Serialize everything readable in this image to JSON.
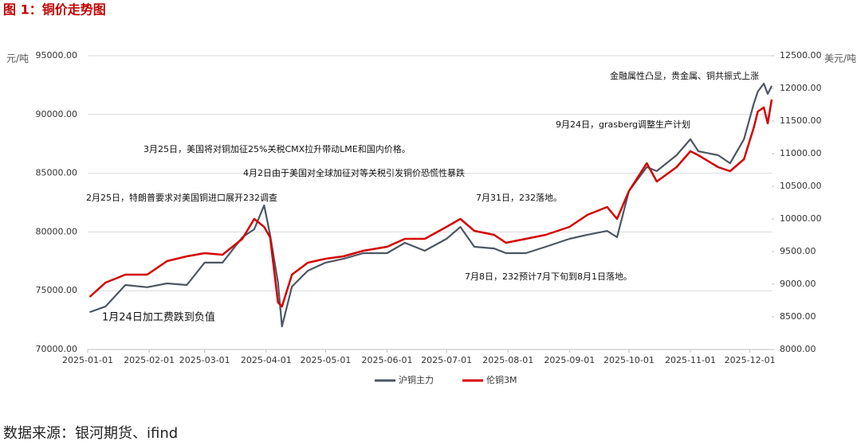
{
  "chart_data": {
    "type": "line",
    "title": "图 1：铜价走势图",
    "source": "数据来源：银河期货、ifind",
    "y_label": "元/吨",
    "y2_label": "美元/吨",
    "x": [
      "2025-01-02",
      "2025-01-10",
      "2025-01-20",
      "2025-01-31",
      "2025-02-10",
      "2025-02-20",
      "2025-03-01",
      "2025-03-10",
      "2025-03-20",
      "2025-03-26",
      "2025-03-31",
      "2025-04-03",
      "2025-04-07",
      "2025-04-09",
      "2025-04-14",
      "2025-04-22",
      "2025-05-01",
      "2025-05-10",
      "2025-05-20",
      "2025-06-01",
      "2025-06-10",
      "2025-06-20",
      "2025-07-01",
      "2025-07-08",
      "2025-07-15",
      "2025-07-25",
      "2025-07-31",
      "2025-08-10",
      "2025-08-20",
      "2025-09-01",
      "2025-09-10",
      "2025-09-20",
      "2025-09-25",
      "2025-10-01",
      "2025-10-10",
      "2025-10-15",
      "2025-10-25",
      "2025-11-01",
      "2025-11-05",
      "2025-11-15",
      "2025-11-21",
      "2025-11-28",
      "2025-12-03",
      "2025-12-05",
      "2025-12-08",
      "2025-12-10",
      "2025-12-12"
    ],
    "xlim": [
      "2025-01-01",
      "2025-12-12"
    ],
    "xticks": [
      "2025-01-01",
      "2025-02-01",
      "2025-03-01",
      "2025-04-01",
      "2025-05-01",
      "2025-06-01",
      "2025-07-01",
      "2025-08-01",
      "2025-09-01",
      "2025-10-01",
      "2025-11-01",
      "2025-12-01"
    ],
    "ylim": [
      70000,
      95000
    ],
    "yticks": [
      {
        "value": 70000,
        "label": "70000.00"
      },
      {
        "value": 75000,
        "label": "75000.00"
      },
      {
        "value": 80000,
        "label": "80000.00"
      },
      {
        "value": 85000,
        "label": "85000.00"
      },
      {
        "value": 90000,
        "label": "90000.00"
      },
      {
        "value": 95000,
        "label": "95000.00"
      }
    ],
    "y2lim": [
      8000,
      12500
    ],
    "y2ticks": [
      {
        "value": 8000,
        "label": "8000.00"
      },
      {
        "value": 8500,
        "label": "8500.00"
      },
      {
        "value": 9000,
        "label": "9000.00"
      },
      {
        "value": 9500,
        "label": "9500.00"
      },
      {
        "value": 10000,
        "label": "10000.00"
      },
      {
        "value": 10500,
        "label": "10500.00"
      },
      {
        "value": 11000,
        "label": "11000.00"
      },
      {
        "value": 11500,
        "label": "11500.00"
      },
      {
        "value": 12000,
        "label": "12000.00"
      },
      {
        "value": 12500,
        "label": "12500.00"
      }
    ],
    "grid": true,
    "series": [
      {
        "name": "沪铜主力",
        "color": "#4d5663",
        "values": [
          73180,
          73660,
          75490,
          75300,
          75620,
          75490,
          77390,
          77390,
          79550,
          80230,
          82260,
          79760,
          75690,
          71960,
          75350,
          76700,
          77390,
          77720,
          78200,
          78200,
          79080,
          78400,
          79420,
          80430,
          78740,
          78600,
          78200,
          78200,
          78740,
          79420,
          79760,
          80090,
          79550,
          83480,
          85520,
          85180,
          86530,
          87890,
          86870,
          86530,
          85850,
          87890,
          90940,
          91950,
          92630,
          91750,
          92430
        ]
      },
      {
        "name": "伦铜3M",
        "color": "#d40000",
        "axis": "y2",
        "values": [
          8805,
          9024,
          9146,
          9146,
          9354,
          9427,
          9476,
          9451,
          9695,
          10000,
          9878,
          9720,
          8720,
          8659,
          9146,
          9329,
          9390,
          9427,
          9512,
          9573,
          9695,
          9695,
          9878,
          10000,
          9817,
          9756,
          9634,
          9695,
          9756,
          9878,
          10061,
          10183,
          10000,
          10427,
          10854,
          10573,
          10793,
          11037,
          10976,
          10793,
          10732,
          10915,
          11402,
          11646,
          11707,
          11463,
          11829
        ]
      }
    ],
    "annotations": [
      "金融属性凸显，贵金属、铜共振式上涨",
      "9月24日，grasberg调整生产计划",
      "3月25日，美国将对铜加征25%关税CMX拉升带动LME和国内价格。",
      "4月2日由于美国对全球加征对等关税引发铜价恐慌性暴跌",
      "2月25日，特朗普要求对美国铜进口展开232调查",
      "7月31日，232落地。",
      "7月8日，232预计7月下旬到8月1日落地。",
      "1月24日加工费跌到负值"
    ]
  }
}
